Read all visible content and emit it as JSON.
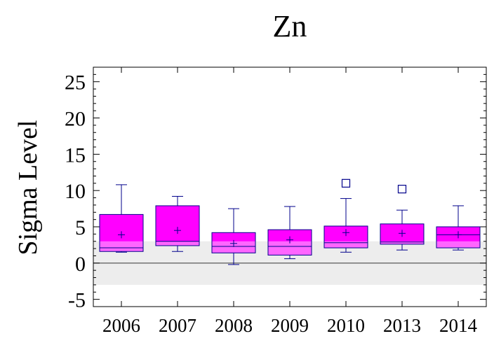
{
  "chart_data": {
    "type": "box",
    "title": "Zn",
    "xlabel": "",
    "ylabel": "Sigma Level",
    "ylim": [
      -6,
      27
    ],
    "yticks": [
      -5,
      0,
      5,
      10,
      15,
      20,
      25
    ],
    "ytick_labels": [
      "-5",
      "0",
      "5",
      "10",
      "15",
      "20",
      "25"
    ],
    "categories": [
      "2006",
      "2007",
      "2008",
      "2009",
      "2010",
      "2013",
      "2014"
    ],
    "reference_band": [
      -3,
      3
    ],
    "reference_line": 0,
    "boxes": [
      {
        "category": "2006",
        "whisker_low": 1.5,
        "q1": 1.6,
        "median": 2.1,
        "q3": 6.7,
        "whisker_high": 10.8,
        "mean": 3.9,
        "outliers": []
      },
      {
        "category": "2007",
        "whisker_low": 1.6,
        "q1": 2.4,
        "median": 3.0,
        "q3": 7.9,
        "whisker_high": 9.2,
        "mean": 4.5,
        "outliers": []
      },
      {
        "category": "2008",
        "whisker_low": -0.2,
        "q1": 1.4,
        "median": 2.3,
        "q3": 4.2,
        "whisker_high": 7.5,
        "mean": 2.7,
        "outliers": []
      },
      {
        "category": "2009",
        "whisker_low": 0.6,
        "q1": 1.1,
        "median": 2.3,
        "q3": 4.6,
        "whisker_high": 7.8,
        "mean": 3.2,
        "outliers": []
      },
      {
        "category": "2010",
        "whisker_low": 1.5,
        "q1": 2.1,
        "median": 2.8,
        "q3": 5.1,
        "whisker_high": 8.9,
        "mean": 4.2,
        "outliers": [
          11.0
        ]
      },
      {
        "category": "2013",
        "whisker_low": 1.8,
        "q1": 2.6,
        "median": 2.9,
        "q3": 5.4,
        "whisker_high": 7.3,
        "mean": 4.1,
        "outliers": [
          10.2
        ]
      },
      {
        "category": "2014",
        "whisker_low": 1.8,
        "q1": 2.1,
        "median": 3.9,
        "q3": 5.0,
        "whisker_high": 7.9,
        "mean": 3.9,
        "outliers": []
      }
    ],
    "colors": {
      "box_fill": "#ff00ff",
      "box_fill_in_band": "#ff66ff",
      "box_stroke": "#00008b",
      "band": "#ededed",
      "axis": "#000000"
    }
  }
}
